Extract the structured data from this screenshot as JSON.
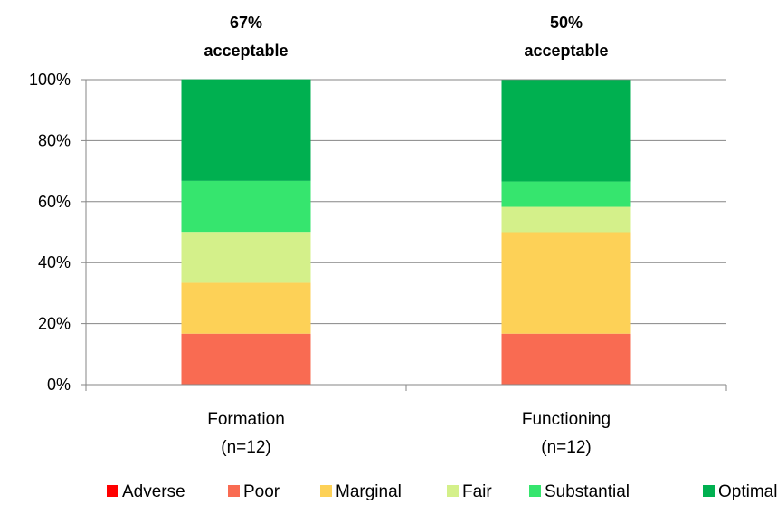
{
  "chart_data": {
    "type": "bar",
    "stacked": true,
    "categories": [
      [
        "Formation",
        "(n=12)"
      ],
      [
        "Functioning",
        "(n=12)"
      ]
    ],
    "annotations": [
      [
        "67%",
        "acceptable"
      ],
      [
        "50%",
        "acceptable"
      ]
    ],
    "series": [
      {
        "name": "Adverse",
        "color": "#ff0000",
        "values": [
          0,
          0
        ]
      },
      {
        "name": "Poor",
        "color": "#f96b52",
        "values": [
          16.7,
          16.7
        ]
      },
      {
        "name": "Marginal",
        "color": "#fdd157",
        "values": [
          16.7,
          33.3
        ]
      },
      {
        "name": "Fair",
        "color": "#d4f08a",
        "values": [
          16.7,
          8.3
        ]
      },
      {
        "name": "Substantial",
        "color": "#36e56e",
        "values": [
          16.7,
          8.3
        ]
      },
      {
        "name": "Optimal",
        "color": "#00b050",
        "values": [
          33.3,
          33.3
        ]
      }
    ],
    "y_ticks": [
      "0%",
      "20%",
      "40%",
      "60%",
      "80%",
      "100%"
    ],
    "ylim": [
      0,
      100
    ],
    "grid": true,
    "legend_position": "bottom",
    "title": "",
    "xlabel": "",
    "ylabel": ""
  }
}
